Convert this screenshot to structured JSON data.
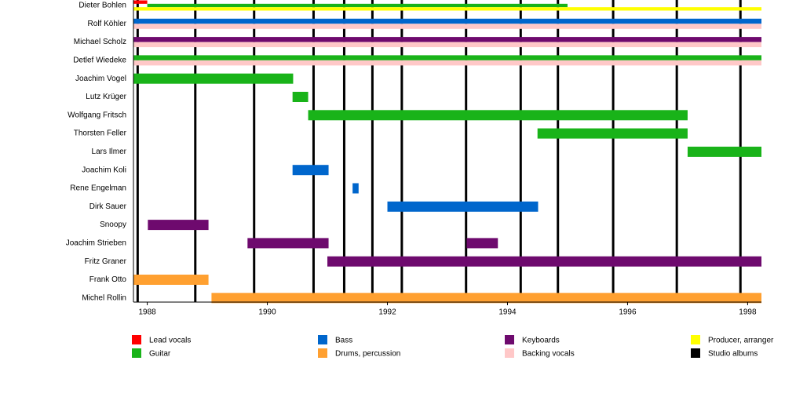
{
  "chart_data": {
    "type": "timeline",
    "categories": [
      "Dieter Bohlen",
      "Rolf Köhler",
      "Michael Scholz",
      "Detlef Wiedeke",
      "Joachim Vogel",
      "Lutz Krüger",
      "Wolfgang Fritsch",
      "Thorsten Feller",
      "Lars Ilmer",
      "Joachim Koli",
      "Rene Engelman",
      "Dirk Sauer",
      "Snoopy",
      "Joachim Strieben",
      "Fritz Graner",
      "Frank Otto",
      "Michel Rollin"
    ],
    "series": [
      {
        "name": "Lead vocals",
        "color": "#ff0000",
        "values": [
          [
            [
              1987.77,
              1988.0
            ]
          ],
          null,
          null,
          null,
          null,
          null,
          null,
          null,
          null,
          null,
          null,
          null,
          null,
          null,
          null,
          null,
          null
        ]
      },
      {
        "name": "Guitar",
        "color": "#19b319",
        "values": [
          [
            [
              1988.0,
              1995.0
            ]
          ],
          null,
          null,
          [
            [
              1987.77,
              1998.23
            ]
          ],
          [
            [
              1987.77,
              1990.43
            ]
          ],
          [
            [
              1990.42,
              1990.68
            ]
          ],
          [
            [
              1990.68,
              1997.0
            ]
          ],
          [
            [
              1994.5,
              1997.0
            ]
          ],
          [
            [
              1997.0,
              1998.23
            ]
          ],
          null,
          null,
          null,
          null,
          null,
          null,
          null,
          null
        ]
      },
      {
        "name": "Bass",
        "color": "#0066cc",
        "values": [
          null,
          [
            [
              1987.77,
              1998.23
            ]
          ],
          null,
          null,
          null,
          null,
          null,
          null,
          null,
          [
            [
              1990.42,
              1991.02
            ]
          ],
          [
            [
              1991.42,
              1991.52
            ]
          ],
          [
            [
              1992.0,
              1994.51
            ]
          ],
          null,
          null,
          null,
          null,
          null
        ]
      },
      {
        "name": "Drums, percussion",
        "color": "#ffa030",
        "values": [
          null,
          null,
          null,
          null,
          null,
          null,
          null,
          null,
          null,
          null,
          null,
          null,
          null,
          null,
          null,
          [
            [
              1987.77,
              1989.02
            ]
          ],
          [
            [
              1989.07,
              1998.23
            ]
          ]
        ]
      },
      {
        "name": "Keyboards",
        "color": "#6e0a6e",
        "values": [
          null,
          null,
          [
            [
              1987.77,
              1998.23
            ]
          ],
          null,
          null,
          null,
          null,
          null,
          null,
          null,
          null,
          null,
          [
            [
              1988.01,
              1989.02
            ]
          ],
          [
            [
              1989.67,
              1991.02
            ],
            [
              1993.32,
              1993.84
            ]
          ],
          [
            [
              1991.0,
              1998.23
            ]
          ],
          null,
          null
        ]
      },
      {
        "name": "Backing vocals",
        "color": "#ffc8c8",
        "values": [
          null,
          [
            [
              1987.77,
              1998.23
            ]
          ],
          [
            [
              1987.77,
              1998.23
            ]
          ],
          [
            [
              1987.77,
              1998.23
            ]
          ],
          null,
          null,
          null,
          null,
          null,
          null,
          null,
          null,
          null,
          null,
          null,
          null,
          null
        ]
      },
      {
        "name": "Producer, arranger",
        "color": "#ffff00",
        "values": [
          [
            [
              1987.77,
              1998.23
            ]
          ],
          null,
          null,
          null,
          null,
          null,
          null,
          null,
          null,
          null,
          null,
          null,
          null,
          null,
          null,
          null,
          null
        ]
      }
    ],
    "albums": {
      "name": "Studio albums",
      "color": "#000000",
      "values": [
        1987.84,
        1988.8,
        1989.78,
        1990.77,
        1991.28,
        1991.75,
        1992.24,
        1993.31,
        1994.22,
        1994.84,
        1995.76,
        1996.82,
        1997.88
      ]
    },
    "xlim": [
      1987.77,
      1998.23
    ],
    "xticks": [
      1988,
      1990,
      1992,
      1994,
      1996,
      1998
    ]
  }
}
